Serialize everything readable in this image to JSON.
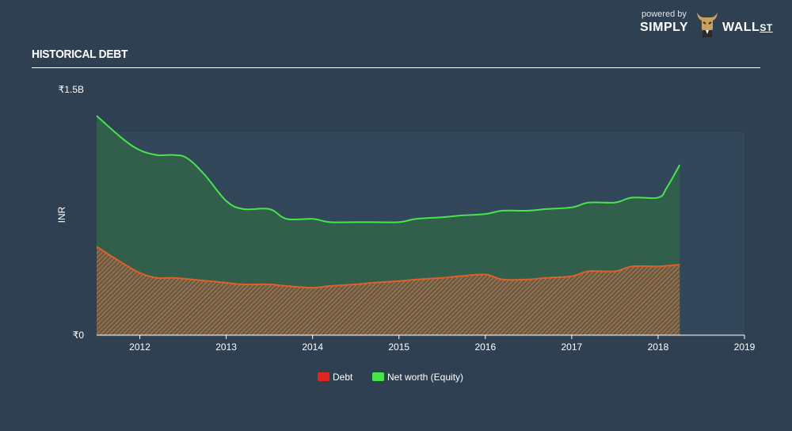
{
  "header": {
    "title": "HISTORICAL DEBT",
    "brand_powered": "powered by",
    "brand_simply": "SIMPLY",
    "brand_wall": "WALL",
    "brand_st": "ST"
  },
  "colors": {
    "background": "#2f4052",
    "debt": "#e0261f",
    "debt_line": "#e0602a",
    "debt_fill": "#8a6a48",
    "equity": "#46e64a",
    "equity_fill": "#33604c",
    "band": "#33475b"
  },
  "chart_data": {
    "type": "area",
    "title": "HISTORICAL DEBT",
    "ylabel": "INR",
    "ylim": [
      0,
      1.5
    ],
    "xlim": [
      2011.5,
      2019
    ],
    "y_unit": "billion INR",
    "y_ticks": [
      {
        "value": 0,
        "label": "₹0"
      },
      {
        "value": 1.5,
        "label": "₹1.5B"
      }
    ],
    "x_ticks": [
      "2012",
      "2013",
      "2014",
      "2015",
      "2016",
      "2017",
      "2018",
      "2019"
    ],
    "legend": [
      "Debt",
      "Net worth (Equity)"
    ],
    "legend_position": "bottom-center",
    "series": [
      {
        "name": "Net worth (Equity)",
        "x": [
          2011.5,
          2011.8,
          2012.0,
          2012.2,
          2012.4,
          2012.55,
          2012.75,
          2013.0,
          2013.2,
          2013.5,
          2013.7,
          2014.0,
          2014.2,
          2014.5,
          2014.7,
          2015.0,
          2015.2,
          2015.5,
          2015.7,
          2016.0,
          2016.2,
          2016.5,
          2016.7,
          2017.0,
          2017.2,
          2017.5,
          2017.7,
          2018.0,
          2018.1,
          2018.25
        ],
        "values": [
          1.34,
          1.2,
          1.13,
          1.1,
          1.1,
          1.08,
          0.98,
          0.82,
          0.77,
          0.77,
          0.71,
          0.71,
          0.69,
          0.69,
          0.69,
          0.69,
          0.71,
          0.72,
          0.73,
          0.74,
          0.76,
          0.76,
          0.77,
          0.78,
          0.81,
          0.81,
          0.84,
          0.84,
          0.9,
          1.04
        ]
      },
      {
        "name": "Debt",
        "x": [
          2011.5,
          2011.8,
          2012.0,
          2012.2,
          2012.4,
          2012.6,
          2012.8,
          2013.0,
          2013.2,
          2013.5,
          2013.7,
          2014.0,
          2014.2,
          2014.5,
          2014.7,
          2015.0,
          2015.2,
          2015.5,
          2015.7,
          2016.0,
          2016.2,
          2016.5,
          2016.7,
          2017.0,
          2017.2,
          2017.5,
          2017.7,
          2018.0,
          2018.25
        ],
        "values": [
          0.54,
          0.44,
          0.38,
          0.35,
          0.35,
          0.34,
          0.33,
          0.32,
          0.31,
          0.31,
          0.3,
          0.29,
          0.3,
          0.31,
          0.32,
          0.33,
          0.34,
          0.35,
          0.36,
          0.37,
          0.34,
          0.34,
          0.35,
          0.36,
          0.39,
          0.39,
          0.42,
          0.42,
          0.43
        ]
      }
    ]
  }
}
